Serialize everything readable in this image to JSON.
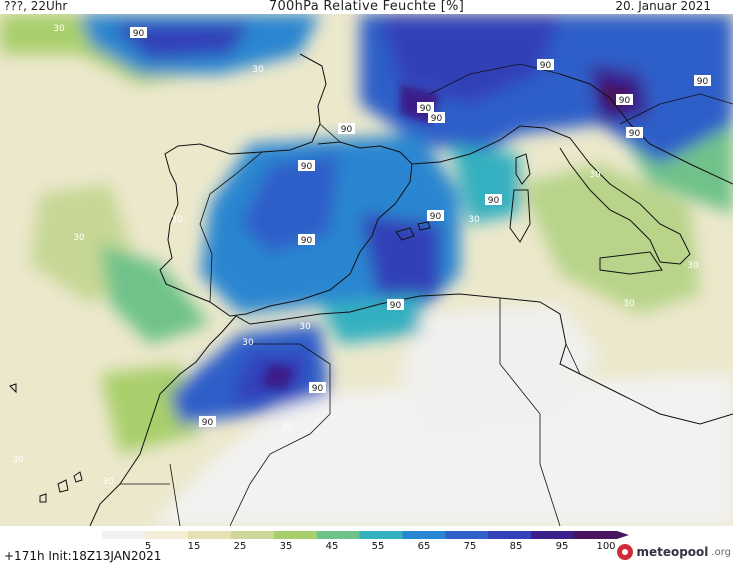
{
  "header": {
    "left": "???, 22Uhr",
    "title": "700hPa Relative Feuchte [%]",
    "date": "20. Januar 2021"
  },
  "footer": {
    "run_info": "+171h  Init:18Z13JAN2021",
    "brand": "meteopool",
    "brand_suffix": ".org"
  },
  "colorbar": {
    "ticks": [
      "5",
      "15",
      "25",
      "35",
      "45",
      "55",
      "65",
      "75",
      "85",
      "95",
      "100"
    ],
    "colors": [
      "#f2f2f2",
      "#f4efd6",
      "#e6e0b5",
      "#cfd79a",
      "#a9cf6c",
      "#6fc28a",
      "#35b0c0",
      "#2a86d0",
      "#2e5fc9",
      "#3340b8",
      "#3a1e8a",
      "#4a1560"
    ]
  },
  "map_labels": [
    {
      "text": "90"
    },
    {
      "text": "90"
    },
    {
      "text": "90"
    },
    {
      "text": "90"
    },
    {
      "text": "90"
    },
    {
      "text": "90"
    },
    {
      "text": "90"
    },
    {
      "text": "90"
    },
    {
      "text": "90"
    },
    {
      "text": "90"
    },
    {
      "text": "90"
    },
    {
      "text": "90"
    },
    {
      "text": "90"
    },
    {
      "text": "90"
    },
    {
      "text": "90"
    },
    {
      "text": "30"
    },
    {
      "text": "30"
    },
    {
      "text": "30"
    },
    {
      "text": "30"
    },
    {
      "text": "30"
    },
    {
      "text": "30"
    },
    {
      "text": "30"
    },
    {
      "text": "30"
    },
    {
      "text": "30"
    },
    {
      "text": "30"
    },
    {
      "text": "30"
    },
    {
      "text": "30"
    },
    {
      "text": "30"
    }
  ]
}
